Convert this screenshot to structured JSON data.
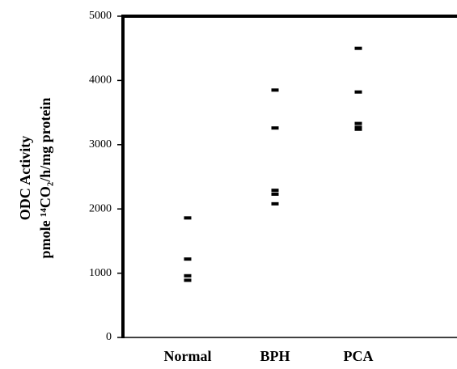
{
  "chart_data": {
    "type": "strip",
    "ylabel": [
      "ODC Activity",
      "pmole ¹⁴CO₂/h/mg protein"
    ],
    "categories": [
      "Normal",
      "BPH",
      "PCA"
    ],
    "values": [
      [
        1860,
        1220,
        960,
        890
      ],
      [
        3850,
        3260,
        2290,
        2230,
        2080
      ],
      [
        4500,
        3820,
        3330,
        3270,
        3240
      ]
    ],
    "color": "#000000",
    "ylim": [
      0,
      5000
    ],
    "yticks": [
      0,
      1000,
      2000,
      3000,
      4000,
      5000
    ],
    "grid": false
  }
}
